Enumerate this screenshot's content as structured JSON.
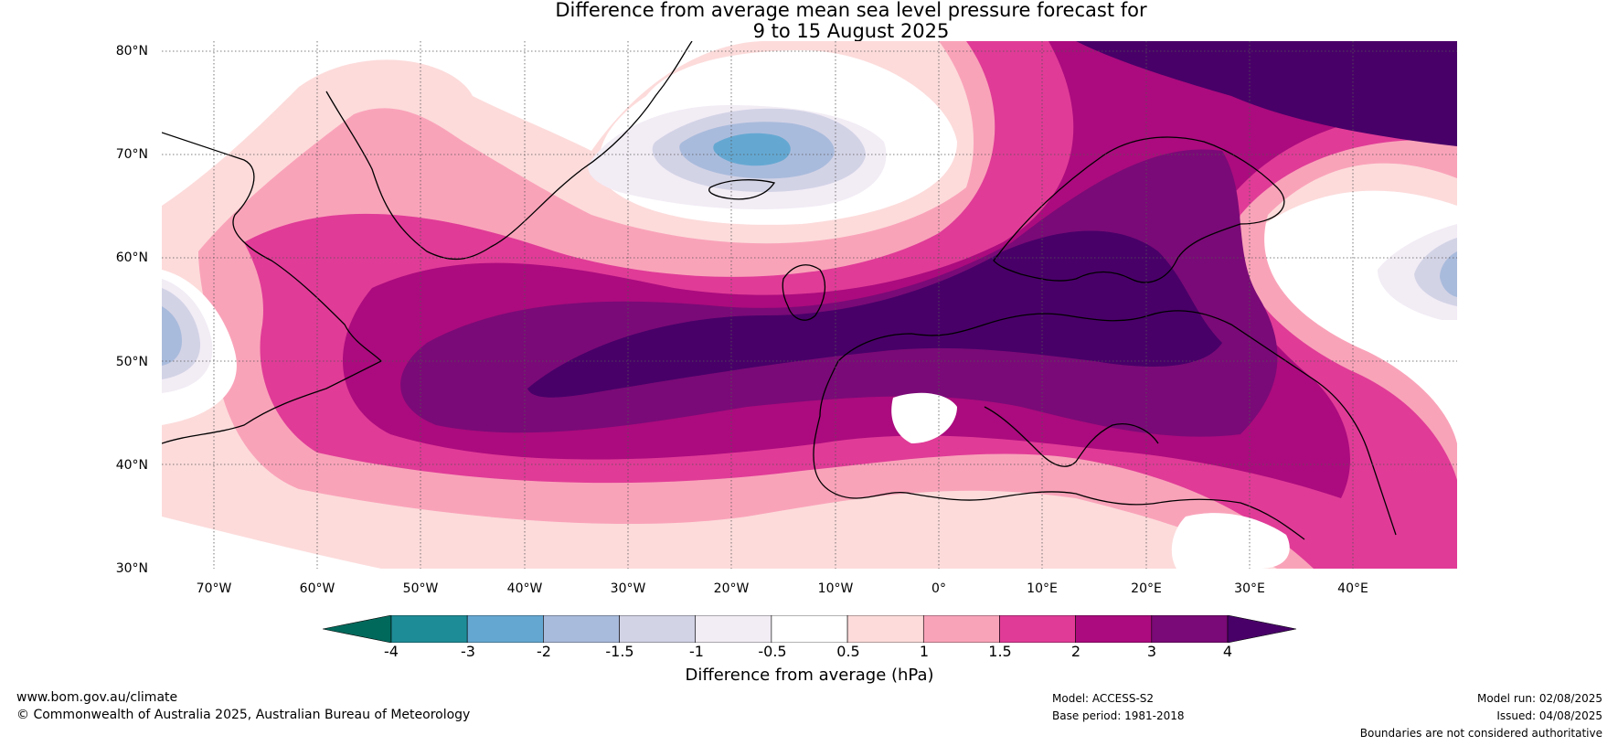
{
  "title": {
    "line1": "Difference from average mean sea level pressure forecast for",
    "line2": "9 to 15 August 2025"
  },
  "map": {
    "lat_labels": [
      "80°N",
      "70°N",
      "60°N",
      "50°N",
      "40°N",
      "30°N"
    ],
    "lon_labels": [
      "70°W",
      "60°W",
      "50°W",
      "40°W",
      "30°W",
      "20°W",
      "10°W",
      "0°",
      "10°E",
      "20°E",
      "30°E",
      "40°E"
    ],
    "lon_range": [
      -75,
      50
    ],
    "lat_range": [
      30,
      81
    ]
  },
  "colorbar": {
    "tick_labels": [
      "-4",
      "-3",
      "-2",
      "-1.5",
      "-1",
      "-0.5",
      "0.5",
      "1",
      "1.5",
      "2",
      "3",
      "4"
    ],
    "colors": [
      "#00695c",
      "#1e8c96",
      "#64a8d2",
      "#a9bbdc",
      "#d3d3e6",
      "#f2ecf5",
      "#ffffff",
      "#fddbdb",
      "#f9a3b9",
      "#e03b97",
      "#ab0b7e",
      "#7a0a77",
      "#480068"
    ],
    "label": "Difference from average (hPa)"
  },
  "footer": {
    "website": "www.bom.gov.au/climate",
    "copyright": "© Commonwealth of Australia 2025, Australian Bureau of Meteorology",
    "model": "Model: ACCESS-S2",
    "base_period": "Base period: 1981-2018",
    "model_run": "Model run: 02/08/2025",
    "issued": "Issued: 04/08/2025",
    "disclaimer": "Boundaries are not considered authoritative"
  }
}
